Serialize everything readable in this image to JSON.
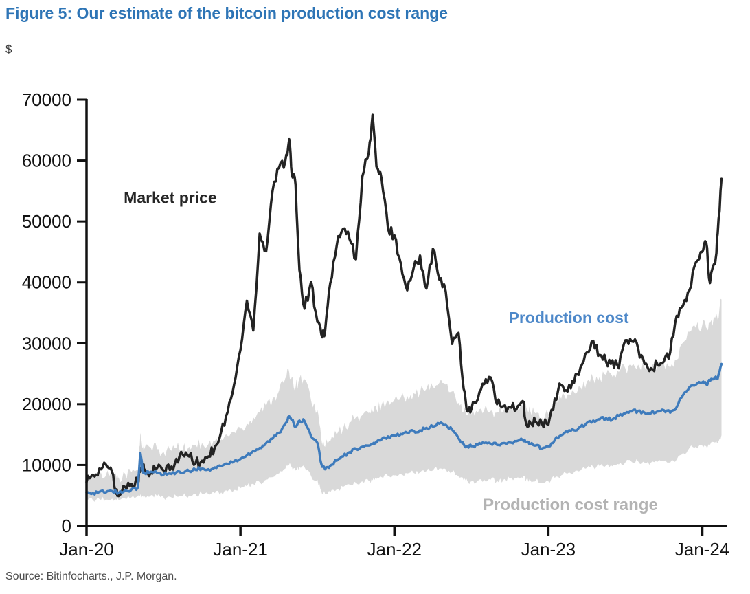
{
  "header": {
    "title": "Figure 5: Our estimate of the bitcoin production cost range"
  },
  "footer": {
    "source": "Source: Bitinfocharts., J.P. Morgan."
  },
  "chart_data": {
    "type": "line",
    "title": "Figure 5: Our estimate of the bitcoin production cost range",
    "xlabel": "",
    "ylabel": "$",
    "ylim": [
      0,
      70000
    ],
    "xlim_months": [
      0,
      49.9
    ],
    "x_unit": "months since Jan-2020",
    "grid": false,
    "legend_position": "inline-annotations",
    "yticks": [
      0,
      10000,
      20000,
      30000,
      40000,
      50000,
      60000,
      70000
    ],
    "xticks": [
      {
        "t": 0,
        "label": "Jan-20"
      },
      {
        "t": 12,
        "label": "Jan-21"
      },
      {
        "t": 24,
        "label": "Jan-22"
      },
      {
        "t": 36,
        "label": "Jan-23"
      },
      {
        "t": 48,
        "label": "Jan-24"
      }
    ],
    "x": [
      0,
      0.5,
      1,
      1.5,
      2,
      2.3,
      2.5,
      3,
      3.5,
      4,
      4.2,
      4.4,
      4.5,
      5,
      5.5,
      6,
      6.5,
      7,
      7.5,
      8,
      8.5,
      9,
      9.5,
      10,
      10.5,
      11,
      11.5,
      12,
      12.5,
      13,
      13.5,
      14,
      14.5,
      15,
      15.5,
      15.8,
      16,
      16.3,
      16.6,
      17,
      17.5,
      18,
      18.3,
      18.6,
      19,
      19.5,
      20,
      20.5,
      21,
      21.5,
      22,
      22.3,
      22.6,
      23,
      23.5,
      24,
      24.5,
      25,
      25.5,
      26,
      26.5,
      27,
      27.5,
      28,
      28.5,
      29,
      29.4,
      29.7,
      30,
      30.5,
      31,
      31.5,
      32,
      32.5,
      33,
      33.5,
      34,
      34.3,
      34.6,
      35,
      35.5,
      36,
      36.5,
      37,
      37.5,
      38,
      38.5,
      39,
      39.5,
      40,
      40.5,
      41,
      41.5,
      42,
      42.5,
      43,
      43.5,
      44,
      44.5,
      45,
      45.5,
      46,
      46.5,
      47,
      47.5,
      48,
      48.3,
      48.6,
      49,
      49.2,
      49.5
    ],
    "series": [
      {
        "name": "Market price",
        "color": "#232323",
        "values": [
          7200,
          8400,
          9400,
          10100,
          8800,
          5300,
          4900,
          6400,
          6900,
          7800,
          8900,
          9700,
          9300,
          8800,
          9500,
          9100,
          9200,
          11000,
          11700,
          11400,
          10300,
          10700,
          11400,
          13000,
          15500,
          18700,
          23200,
          28900,
          37000,
          32100,
          48000,
          45100,
          55000,
          58800,
          60000,
          63500,
          57800,
          56000,
          42000,
          35700,
          40100,
          33500,
          31500,
          32100,
          39900,
          46000,
          48800,
          47100,
          43800,
          57400,
          61300,
          67500,
          59000,
          57000,
          48900,
          47700,
          43100,
          38700,
          42400,
          44400,
          39000,
          45500,
          40500,
          38500,
          29900,
          31700,
          22500,
          18800,
          19200,
          20800,
          23300,
          24400,
          20000,
          19700,
          19500,
          19100,
          20500,
          16600,
          16900,
          17100,
          16800,
          16600,
          20900,
          23100,
          22100,
          23500,
          26000,
          28500,
          30400,
          28100,
          27000,
          27200,
          25900,
          30500,
          30300,
          29200,
          26600,
          25900,
          26500,
          27000,
          28500,
          34500,
          36200,
          38700,
          43300,
          45000,
          46600,
          39900,
          43100,
          48000,
          57000
        ]
      },
      {
        "name": "Production cost",
        "color": "#3e7bbc",
        "values": [
          5500,
          5400,
          5600,
          5500,
          5700,
          5600,
          5400,
          5800,
          6000,
          6300,
          12000,
          9000,
          8700,
          8900,
          8700,
          8400,
          8600,
          8800,
          8700,
          9000,
          9200,
          9400,
          9300,
          9600,
          9800,
          10200,
          10600,
          11000,
          11600,
          12300,
          12800,
          13600,
          14300,
          15300,
          16800,
          18000,
          17400,
          16300,
          17300,
          17200,
          14700,
          13600,
          10200,
          9300,
          9900,
          10700,
          11400,
          12100,
          12700,
          13000,
          13200,
          13400,
          13700,
          14200,
          14700,
          14800,
          15100,
          15300,
          15600,
          15700,
          16100,
          16300,
          16800,
          16600,
          15800,
          14400,
          13400,
          13000,
          13100,
          13300,
          13600,
          13500,
          13300,
          13600,
          13700,
          13900,
          14100,
          13800,
          13400,
          13200,
          12700,
          13100,
          14100,
          14900,
          15400,
          15700,
          16300,
          16900,
          17300,
          17500,
          17700,
          17500,
          18100,
          18500,
          18800,
          18900,
          18600,
          18500,
          18800,
          19000,
          18600,
          19500,
          21500,
          22800,
          23200,
          23600,
          23300,
          23800,
          24400,
          24200,
          26600
        ]
      }
    ],
    "band": {
      "name": "Production cost range",
      "color": "#d9d9d9",
      "top": [
        8200,
        8000,
        8300,
        8200,
        8400,
        8300,
        8000,
        8600,
        8800,
        9200,
        15300,
        13000,
        12600,
        12900,
        12600,
        12200,
        12500,
        12800,
        12600,
        13000,
        13300,
        13600,
        13400,
        13900,
        14200,
        14800,
        15400,
        16000,
        16800,
        17800,
        18600,
        19700,
        20800,
        22200,
        24300,
        25200,
        24400,
        22800,
        24200,
        24100,
        20600,
        19000,
        14300,
        13000,
        13900,
        15000,
        16000,
        17000,
        17800,
        18200,
        18500,
        18800,
        19200,
        19900,
        20600,
        20700,
        21100,
        21400,
        21800,
        22000,
        22500,
        22800,
        23500,
        23200,
        22100,
        20200,
        18800,
        18200,
        18300,
        18600,
        19000,
        18900,
        18600,
        19000,
        19200,
        19500,
        19700,
        19300,
        18800,
        18500,
        17800,
        18300,
        19700,
        20900,
        21600,
        22000,
        22800,
        23700,
        24200,
        24500,
        24800,
        24500,
        25300,
        25900,
        26300,
        26500,
        26000,
        25900,
        26300,
        26600,
        26000,
        27300,
        30100,
        31900,
        32500,
        33000,
        32600,
        33300,
        34200,
        33900,
        37200
      ],
      "bottom": [
        4300,
        4200,
        4400,
        4300,
        4500,
        4400,
        4200,
        4500,
        4700,
        4900,
        5100,
        5000,
        4900,
        5000,
        4900,
        4700,
        4800,
        4900,
        4900,
        5000,
        5200,
        5300,
        5200,
        5400,
        5500,
        5700,
        5900,
        6200,
        6500,
        6900,
        7200,
        7600,
        8000,
        8600,
        9400,
        10100,
        9800,
        9100,
        9700,
        9600,
        8200,
        7600,
        5700,
        5200,
        5500,
        6000,
        6400,
        6800,
        7100,
        7300,
        7400,
        7500,
        7700,
        8000,
        8200,
        8300,
        8500,
        8600,
        8700,
        8800,
        9000,
        9100,
        9400,
        9300,
        8900,
        8100,
        7500,
        7300,
        7300,
        7400,
        7600,
        7600,
        7400,
        7600,
        7700,
        7800,
        7900,
        7700,
        7500,
        7400,
        7100,
        7300,
        7900,
        8300,
        8600,
        8800,
        9100,
        9500,
        9700,
        9800,
        9900,
        9800,
        10100,
        10400,
        10500,
        10600,
        10400,
        10400,
        10500,
        10600,
        10400,
        10900,
        12000,
        12800,
        13000,
        13200,
        13100,
        13300,
        13700,
        13600,
        14900
      ]
    },
    "annotations": [
      {
        "name": "market-price-label",
        "text": "Market price",
        "t": 2.9,
        "v": 53000,
        "color": "#262626",
        "size": 23
      },
      {
        "name": "production-cost-label",
        "text": "Production cost",
        "t": 32.9,
        "v": 33300,
        "color": "#4d88c9",
        "size": 23
      },
      {
        "name": "production-cost-range-label",
        "text": "Production cost range",
        "t": 30.9,
        "v": 2600,
        "color": "#b3b3b3",
        "size": 24
      }
    ],
    "style": {
      "axis_color": "#111111",
      "jitter": {
        "market": 900,
        "cost": 300,
        "band_top": 1000,
        "band_bottom": 450
      },
      "subdiv": 4
    }
  }
}
